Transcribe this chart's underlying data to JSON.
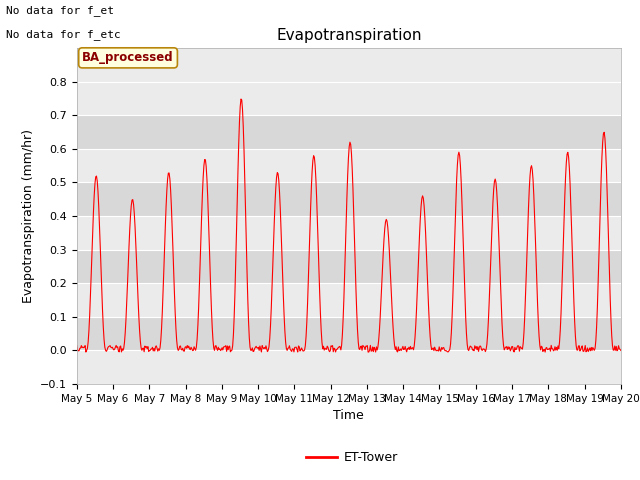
{
  "title": "Evapotranspiration",
  "xlabel": "Time",
  "ylabel": "Evapotranspiration (mm/hr)",
  "ylim": [
    -0.1,
    0.9
  ],
  "yticks": [
    -0.1,
    0.0,
    0.1,
    0.2,
    0.3,
    0.4,
    0.5,
    0.6,
    0.7,
    0.8
  ],
  "line_color": "red",
  "line_width": 0.8,
  "plot_bg_color": "#ebebeb",
  "no_data_text1": "No data for f_et",
  "no_data_text2": "No data for f_etc",
  "ba_processed_label": "BA_processed",
  "legend_label": "ET-Tower",
  "n_days": 15,
  "gray_band_color": "#d8d8d8",
  "white_band_color": "#ebebeb",
  "gray_band_ranges": [
    [
      0.6,
      0.7
    ],
    [
      0.4,
      0.5
    ],
    [
      0.2,
      0.3
    ],
    [
      0.0,
      0.1
    ]
  ],
  "daily_peaks": [
    0.52,
    0.45,
    0.53,
    0.57,
    0.75,
    0.53,
    0.58,
    0.62,
    0.39,
    0.46,
    0.59,
    0.51,
    0.55,
    0.59,
    0.65
  ],
  "title_fontsize": 11,
  "label_fontsize": 9,
  "tick_fontsize": 8
}
